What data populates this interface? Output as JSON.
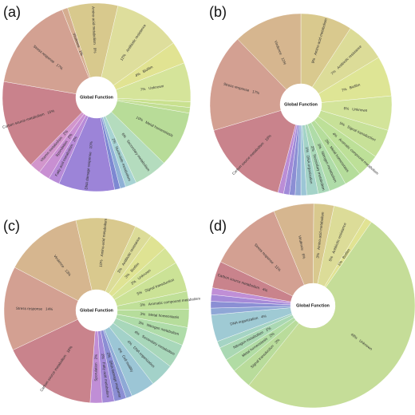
{
  "chart_data": [
    {
      "type": "pie",
      "panel_label": "(a)",
      "center_title": "Global Function",
      "slices": [
        {
          "label": "Amino-acid metabolism",
          "pct_label": "9%",
          "value": 9,
          "color": "#d8c98d"
        },
        {
          "label": "Antibiotic resistance",
          "pct_label": "12%",
          "value": 12,
          "color": "#dede9c"
        },
        {
          "label": "Biofilm",
          "pct_label": "4%",
          "value": 4,
          "color": "#e1e392"
        },
        {
          "label": "Unknown",
          "pct_label": "7%",
          "value": 7,
          "color": "#d5e49a"
        },
        {
          "label": "",
          "pct_label": "",
          "value": 1,
          "color": "#c9e18f"
        },
        {
          "label": "",
          "pct_label": "",
          "value": 1,
          "color": "#c1de93"
        },
        {
          "label": "Metal homeostasis",
          "pct_label": "10%",
          "value": 10,
          "color": "#b8dc98"
        },
        {
          "label": "Secondary metabolism",
          "pct_label": "6%",
          "value": 6,
          "color": "#b4dcbe"
        },
        {
          "label": "Nucleotide metabolism",
          "pct_label": "2%",
          "value": 2,
          "color": "#a7d3d3"
        },
        {
          "label": "",
          "pct_label": "",
          "value": 1,
          "color": "#8fb0d6"
        },
        {
          "label": "",
          "pct_label": "",
          "value": 1,
          "color": "#7d88d2"
        },
        {
          "label": "DNA damage response",
          "pct_label": "10%",
          "value": 10,
          "color": "#9c84d8"
        },
        {
          "label": "Fatty acid metabolism",
          "pct_label": "2%",
          "value": 2,
          "color": "#b88bd8"
        },
        {
          "label": "Sporulation",
          "pct_label": "2%",
          "value": 2,
          "color": "#c88fd2"
        },
        {
          "label": "Vitamin metabolism",
          "pct_label": "2%",
          "value": 2,
          "color": "#d296cc"
        },
        {
          "label": "Carbon source metabolism",
          "pct_label": "16%",
          "value": 16,
          "color": "#c9828c"
        },
        {
          "label": "Stress response",
          "pct_label": "17%",
          "value": 17,
          "color": "#d3a192"
        },
        {
          "label": "Virulence",
          "pct_label": "1%",
          "value": 1,
          "color": "#d5ad90"
        }
      ]
    },
    {
      "type": "pie",
      "panel_label": "(b)",
      "center_title": "Global Function",
      "slices": [
        {
          "label": "Amino-acid metabolism",
          "pct_label": "9%",
          "value": 9,
          "color": "#d9c98e"
        },
        {
          "label": "Antibiotic resistance",
          "pct_label": "7%",
          "value": 7,
          "color": "#dcdc98"
        },
        {
          "label": "Biofilm",
          "pct_label": "7%",
          "value": 7,
          "color": "#dee595"
        },
        {
          "label": "Unknown",
          "pct_label": "6%",
          "value": 6,
          "color": "#d3e49a"
        },
        {
          "label": "Signal transduction",
          "pct_label": "5%",
          "value": 5,
          "color": "#c7e198"
        },
        {
          "label": "Aromatic compound metabolism",
          "pct_label": "4%",
          "value": 4,
          "color": "#bde098"
        },
        {
          "label": "Metal homeostasis",
          "pct_label": "3%",
          "value": 3,
          "color": "#b5dd9b"
        },
        {
          "label": "Nitrogen metabolism",
          "pct_label": "3%",
          "value": 3,
          "color": "#afdca8"
        },
        {
          "label": "Secondary metabolism",
          "pct_label": "2%",
          "value": 2,
          "color": "#a9d8b8"
        },
        {
          "label": "DNA organization",
          "pct_label": "2%",
          "value": 2,
          "color": "#a4d3c8"
        },
        {
          "label": "",
          "pct_label": "",
          "value": 1,
          "color": "#9cc6d6"
        },
        {
          "label": "",
          "pct_label": "",
          "value": 1,
          "color": "#8fa8d6"
        },
        {
          "label": "",
          "pct_label": "",
          "value": 1,
          "color": "#8c8ed4"
        },
        {
          "label": "",
          "pct_label": "",
          "value": 1,
          "color": "#a08ad8"
        },
        {
          "label": "",
          "pct_label": "",
          "value": 1,
          "color": "#bb8dd6"
        },
        {
          "label": "Carbon source metabolism",
          "pct_label": "16%",
          "value": 16,
          "color": "#c9838c"
        },
        {
          "label": "Stress response",
          "pct_label": "17%",
          "value": 17,
          "color": "#d3a092"
        },
        {
          "label": "Virulence",
          "pct_label": "12%",
          "value": 12,
          "color": "#d6b68f"
        }
      ]
    },
    {
      "type": "pie",
      "panel_label": "(c)",
      "center_title": "Global Function",
      "slices": [
        {
          "label": "Amino-acid metabolism",
          "pct_label": "10%",
          "value": 10,
          "color": "#d9c98e"
        },
        {
          "label": "Antibiotic resistance",
          "pct_label": "3%",
          "value": 3,
          "color": "#dcdc98"
        },
        {
          "label": "Biofilm",
          "pct_label": "3%",
          "value": 3,
          "color": "#dfe393"
        },
        {
          "label": "Unknown",
          "pct_label": "3%",
          "value": 3,
          "color": "#d6e497"
        },
        {
          "label": "Signal transduction",
          "pct_label": "5%",
          "value": 5,
          "color": "#cbe296"
        },
        {
          "label": "Aromatic compound metabolism",
          "pct_label": "3%",
          "value": 3,
          "color": "#c0e098"
        },
        {
          "label": "Metal homeostasis",
          "pct_label": "3%",
          "value": 3,
          "color": "#b6dd9b"
        },
        {
          "label": "Nitrogen metabolism",
          "pct_label": "3%",
          "value": 3,
          "color": "#afdca9"
        },
        {
          "label": "Secondary metabolism",
          "pct_label": "4%",
          "value": 4,
          "color": "#a8d7ba"
        },
        {
          "label": "DNA organization",
          "pct_label": "4%",
          "value": 4,
          "color": "#a3d2c9"
        },
        {
          "label": "Cell motility",
          "pct_label": "4%",
          "value": 4,
          "color": "#9cc6d6"
        },
        {
          "label": "",
          "pct_label": "",
          "value": 1,
          "color": "#8ea9d6"
        },
        {
          "label": "DNA damage response",
          "pct_label": "2%",
          "value": 2,
          "color": "#8c8ed4"
        },
        {
          "label": "Fatty acid metabolism",
          "pct_label": "2%",
          "value": 2,
          "color": "#a48ad8"
        },
        {
          "label": "Sporulation",
          "pct_label": "2%",
          "value": 2,
          "color": "#c08ed6"
        },
        {
          "label": "Carbon source metabolism",
          "pct_label": "16%",
          "value": 16,
          "color": "#c9838c"
        },
        {
          "label": "Stress response",
          "pct_label": "14%",
          "value": 14,
          "color": "#d3a092"
        },
        {
          "label": "Virulence",
          "pct_label": "13%",
          "value": 13,
          "color": "#d6b68f"
        }
      ]
    },
    {
      "type": "pie",
      "panel_label": "(d)",
      "center_title": "Global Function",
      "slices": [
        {
          "label": "Unknown",
          "pct_label": "48%",
          "value": 48,
          "color": "#c5dd98"
        },
        {
          "label": "Signal transduction",
          "pct_label": "3%",
          "value": 3,
          "color": "#b9dc9b"
        },
        {
          "label": "Metal homeostasis",
          "pct_label": "2%",
          "value": 2,
          "color": "#b1dca4"
        },
        {
          "label": "Nitrogen metabolism",
          "pct_label": "2%",
          "value": 2,
          "color": "#aad8b3"
        },
        {
          "label": "",
          "pct_label": "",
          "value": 1,
          "color": "#a5d4c4"
        },
        {
          "label": "DNA organization",
          "pct_label": "4%",
          "value": 4,
          "color": "#9fcad4"
        },
        {
          "label": "",
          "pct_label": "",
          "value": 1,
          "color": "#8fa7d6"
        },
        {
          "label": "",
          "pct_label": "",
          "value": 1,
          "color": "#8b8fd4"
        },
        {
          "label": "",
          "pct_label": "",
          "value": 1,
          "color": "#a58ad8"
        },
        {
          "label": "",
          "pct_label": "",
          "value": 1,
          "color": "#c08fd6"
        },
        {
          "label": "Carbon source metabolism",
          "pct_label": "4%",
          "value": 4,
          "color": "#c9838c"
        },
        {
          "label": "Stress response",
          "pct_label": "11%",
          "value": 11,
          "color": "#d3a092"
        },
        {
          "label": "Virulence",
          "pct_label": "6%",
          "value": 6,
          "color": "#d6b68f"
        },
        {
          "label": "Amino-acid metabolism",
          "pct_label": "3%",
          "value": 3,
          "color": "#d9c98e"
        },
        {
          "label": "Antibiotic resistance",
          "pct_label": "5%",
          "value": 5,
          "color": "#dcdc98"
        },
        {
          "label": "Biofilm",
          "pct_label": "1%",
          "value": 1,
          "color": "#e1e393"
        }
      ]
    }
  ]
}
